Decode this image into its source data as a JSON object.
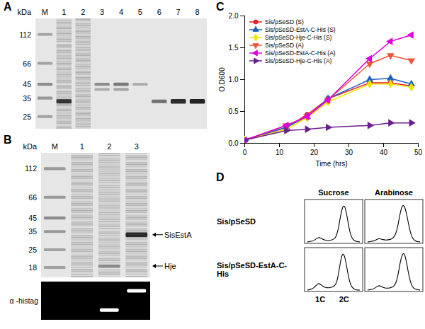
{
  "panel_A": {
    "label": "A",
    "unit": "kDa",
    "lanes": [
      "M",
      "1",
      "2",
      "3",
      "4",
      "5",
      "6",
      "7",
      "8"
    ],
    "markers": [
      112,
      66,
      45,
      35,
      25
    ],
    "lysate_lanes": [
      "1",
      "2"
    ],
    "bands": [
      {
        "lane": "M",
        "kDa": 112,
        "intensity": 0.35
      },
      {
        "lane": "M",
        "kDa": 66,
        "intensity": 0.35
      },
      {
        "lane": "M",
        "kDa": 45,
        "intensity": 0.45
      },
      {
        "lane": "M",
        "kDa": 35,
        "intensity": 0.4
      },
      {
        "lane": "M",
        "kDa": 25,
        "intensity": 0.35
      },
      {
        "lane": "1",
        "kDa": 33,
        "intensity": 0.9
      },
      {
        "lane": "3",
        "kDa": 45,
        "intensity": 0.45
      },
      {
        "lane": "3",
        "kDa": 41,
        "intensity": 0.3
      },
      {
        "lane": "4",
        "kDa": 45,
        "intensity": 0.55
      },
      {
        "lane": "4",
        "kDa": 41,
        "intensity": 0.35
      },
      {
        "lane": "5",
        "kDa": 45,
        "intensity": 0.3
      },
      {
        "lane": "6",
        "kDa": 33,
        "intensity": 0.6
      },
      {
        "lane": "7",
        "kDa": 33,
        "intensity": 0.95
      },
      {
        "lane": "8",
        "kDa": 33,
        "intensity": 1
      }
    ]
  },
  "panel_B": {
    "label": "B",
    "unit": "kDa",
    "lanes": [
      "M",
      "1",
      "2",
      "3"
    ],
    "markers": [
      112,
      66,
      45,
      35,
      25,
      18
    ],
    "lysate_lanes": [
      "1",
      "2",
      "3"
    ],
    "bands": [
      {
        "lane": "M",
        "kDa": 112,
        "intensity": 0.4
      },
      {
        "lane": "M",
        "kDa": 66,
        "intensity": 0.4
      },
      {
        "lane": "M",
        "kDa": 45,
        "intensity": 0.45
      },
      {
        "lane": "M",
        "kDa": 35,
        "intensity": 0.4
      },
      {
        "lane": "M",
        "kDa": 25,
        "intensity": 0.35
      },
      {
        "lane": "M",
        "kDa": 18,
        "intensity": 0.35
      },
      {
        "lane": "3",
        "kDa": 33,
        "intensity": 0.95
      },
      {
        "lane": "2",
        "kDa": 18.5,
        "intensity": 0.35
      }
    ],
    "annotations": [
      {
        "text": "SisEstA",
        "kDa": 33
      },
      {
        "text": "Hje",
        "kDa": 18.5
      }
    ],
    "blot": {
      "label": "α -histag",
      "bands": [
        {
          "lane": "2",
          "kDa": 18.5
        },
        {
          "lane": "3",
          "kDa": 33
        }
      ]
    }
  },
  "chart_data": {
    "type": "line",
    "panel_label": "C",
    "x_label": "Time (hrs)",
    "y_label": "O.D600",
    "x": [
      0,
      12,
      18,
      24,
      36,
      42,
      48
    ],
    "xlim": [
      0,
      50
    ],
    "xticks": [
      0,
      10,
      20,
      30,
      40,
      50
    ],
    "ylim": [
      0,
      2
    ],
    "yticks": [
      {
        "value": 0,
        "label": "0.0"
      },
      0.5,
      {
        "value": 1,
        "label": "1.0"
      },
      1.5,
      {
        "value": 2,
        "label": "2.0"
      }
    ],
    "grid": false,
    "legend": "top-left",
    "series": [
      {
        "name": "Sis/pSeSD (S)",
        "color": "#ee1c25",
        "marker": "circle",
        "values": [
          0.05,
          0.25,
          0.45,
          0.7,
          0.95,
          0.95,
          0.9
        ]
      },
      {
        "name": "Sis/pSeSD-EstA-C-His (S)",
        "color": "#1f5fbf",
        "marker": "triangle-up",
        "values": [
          0.05,
          0.25,
          0.42,
          0.7,
          1.0,
          1.02,
          0.93
        ]
      },
      {
        "name": "Sis/pSeSD-Hje-C-His (S)",
        "color": "#f2e600",
        "marker": "diamond",
        "values": [
          0.05,
          0.22,
          0.4,
          0.65,
          0.93,
          0.93,
          0.88
        ]
      },
      {
        "name": "Sis/pSeSD (A)",
        "color": "#f0553a",
        "marker": "triangle-down",
        "values": [
          0.05,
          0.28,
          0.42,
          0.68,
          1.25,
          1.38,
          1.3
        ]
      },
      {
        "name": "Sis/pSeSD-EstA-C-His (A)",
        "color": "#e000e0",
        "marker": "triangle-left",
        "values": [
          0.05,
          0.28,
          0.42,
          0.68,
          1.33,
          1.6,
          1.7
        ]
      },
      {
        "name": "Sis/pSeSD-Hje-C-His (A)",
        "color": "#6a1f8f",
        "marker": "triangle-right",
        "values": [
          0.05,
          0.2,
          0.22,
          0.25,
          0.28,
          0.32,
          0.32
        ]
      }
    ]
  },
  "panel_D": {
    "label": "D",
    "columns": [
      "Sucrose",
      "Arabinose"
    ],
    "rows": [
      "Sis/pSeSD",
      "Sis/pSeSD-EstA-C-His"
    ],
    "x_labels": [
      "1C",
      "2C"
    ],
    "histograms": [
      [
        0,
        1,
        2,
        4,
        8,
        12,
        10,
        7,
        5,
        4,
        4,
        5,
        7,
        12,
        28,
        62,
        90,
        96,
        72,
        36,
        14,
        5,
        2,
        1,
        0
      ],
      [
        0,
        1,
        2,
        3,
        6,
        9,
        8,
        6,
        5,
        5,
        6,
        8,
        12,
        22,
        45,
        78,
        96,
        92,
        68,
        38,
        16,
        6,
        2,
        1,
        0
      ],
      [
        0,
        1,
        3,
        6,
        12,
        18,
        15,
        10,
        7,
        6,
        6,
        7,
        9,
        14,
        32,
        70,
        96,
        90,
        60,
        28,
        10,
        4,
        1,
        0,
        0
      ],
      [
        0,
        1,
        2,
        4,
        8,
        12,
        10,
        7,
        5,
        5,
        5,
        7,
        10,
        18,
        40,
        75,
        95,
        94,
        66,
        34,
        13,
        5,
        2,
        1,
        0
      ]
    ]
  }
}
